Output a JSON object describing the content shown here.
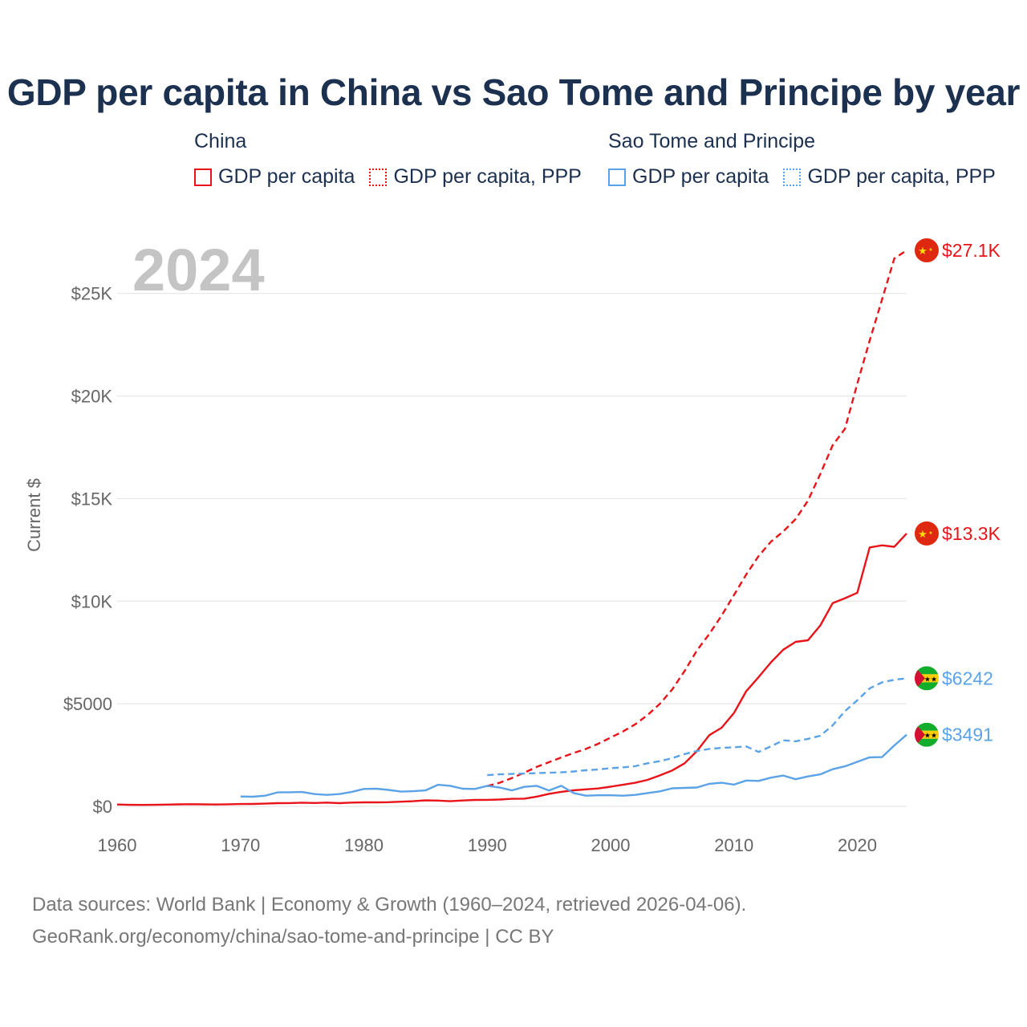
{
  "title": "GDP per capita in China vs Sao Tome and Principe by year",
  "legend": {
    "groups": [
      {
        "name": "China",
        "color": "#e8141a",
        "items": [
          "GDP per capita",
          "GDP per capita, PPP"
        ]
      },
      {
        "name": "Sao Tome and Principe",
        "color": "#5ba3e6",
        "items": [
          "GDP per capita",
          "GDP per capita, PPP"
        ]
      }
    ]
  },
  "year_watermark": "2024",
  "footer": {
    "line1": "Data sources: World Bank | Economy & Growth (1960–2024, retrieved 2026-04-06).",
    "line2": "GeoRank.org/economy/china/sao-tome-and-principe | CC BY"
  },
  "chart_data": {
    "type": "line",
    "title": "GDP per capita in China vs Sao Tome and Principe by year",
    "xlabel": "",
    "ylabel": "Current $",
    "xlim": [
      1960,
      2024
    ],
    "ylim": [
      0,
      27100
    ],
    "x_ticks": [
      1960,
      1970,
      1980,
      1990,
      2000,
      2010,
      2020
    ],
    "x_tick_labels": [
      "1960",
      "1970",
      "1980",
      "1990",
      "2000",
      "2010",
      "2020"
    ],
    "y_ticks": [
      0,
      5000,
      10000,
      15000,
      20000,
      25000
    ],
    "y_tick_labels": [
      "$0",
      "$5000",
      "$10K",
      "$15K",
      "$20K",
      "$25K"
    ],
    "grid": true,
    "series": [
      {
        "name": "China GDP per capita",
        "country": "China",
        "color": "#e8141a",
        "dashed": false,
        "end_label": "$13.3K",
        "x_start": 1960,
        "values": [
          90,
          76,
          71,
          75,
          85,
          98,
          104,
          97,
          91,
          100,
          113,
          119,
          132,
          157,
          160,
          178,
          165,
          185,
          156,
          183,
          195,
          197,
          203,
          225,
          251,
          294,
          282,
          251,
          284,
          311,
          318,
          333,
          366,
          377,
          473,
          610,
          709,
          782,
          829,
          873,
          959,
          1053,
          1149,
          1289,
          1509,
          1753,
          2099,
          2694,
          3468,
          3832,
          4550,
          5614,
          6301,
          7020,
          7636,
          8016,
          8094,
          8817,
          9905,
          10144,
          10409,
          12618,
          12720,
          12650,
          13300
        ]
      },
      {
        "name": "China GDP per capita, PPP",
        "country": "China",
        "color": "#e8141a",
        "dashed": true,
        "end_label": "$27.1K",
        "x_start": 1990,
        "values": [
          990,
          1150,
          1380,
          1640,
          1920,
          2150,
          2380,
          2600,
          2800,
          3050,
          3350,
          3650,
          4000,
          4450,
          5000,
          5700,
          6600,
          7600,
          8400,
          9300,
          10300,
          11300,
          12200,
          12900,
          13400,
          14000,
          14900,
          16200,
          17600,
          18400,
          20600,
          22700,
          24700,
          26700,
          27100
        ]
      },
      {
        "name": "Sao Tome and Principe GDP per capita",
        "country": "Sao Tome and Principe",
        "color": "#5ba3e6",
        "dashed": false,
        "end_label": "$3491",
        "x_start": 1970,
        "values": [
          480,
          470,
          520,
          680,
          690,
          700,
          600,
          560,
          600,
          700,
          850,
          860,
          800,
          720,
          740,
          780,
          1050,
          1000,
          860,
          850,
          1000,
          920,
          780,
          950,
          1000,
          770,
          1000,
          650,
          520,
          540,
          540,
          520,
          560,
          650,
          730,
          880,
          900,
          920,
          1100,
          1150,
          1060,
          1260,
          1240,
          1400,
          1500,
          1320,
          1460,
          1560,
          1810,
          1950,
          2170,
          2390,
          2400,
          2970,
          3491
        ]
      },
      {
        "name": "Sao Tome and Principe GDP per capita, PPP",
        "country": "Sao Tome and Principe",
        "color": "#5ba3e6",
        "dashed": true,
        "end_label": "$6242",
        "x_start": 1990,
        "values": [
          1520,
          1560,
          1580,
          1600,
          1620,
          1640,
          1660,
          1700,
          1760,
          1800,
          1860,
          1900,
          1960,
          2100,
          2200,
          2350,
          2550,
          2700,
          2800,
          2850,
          2880,
          2920,
          2650,
          2930,
          3220,
          3170,
          3290,
          3440,
          3950,
          4640,
          5170,
          5750,
          6040,
          6170,
          6242
        ]
      }
    ]
  }
}
